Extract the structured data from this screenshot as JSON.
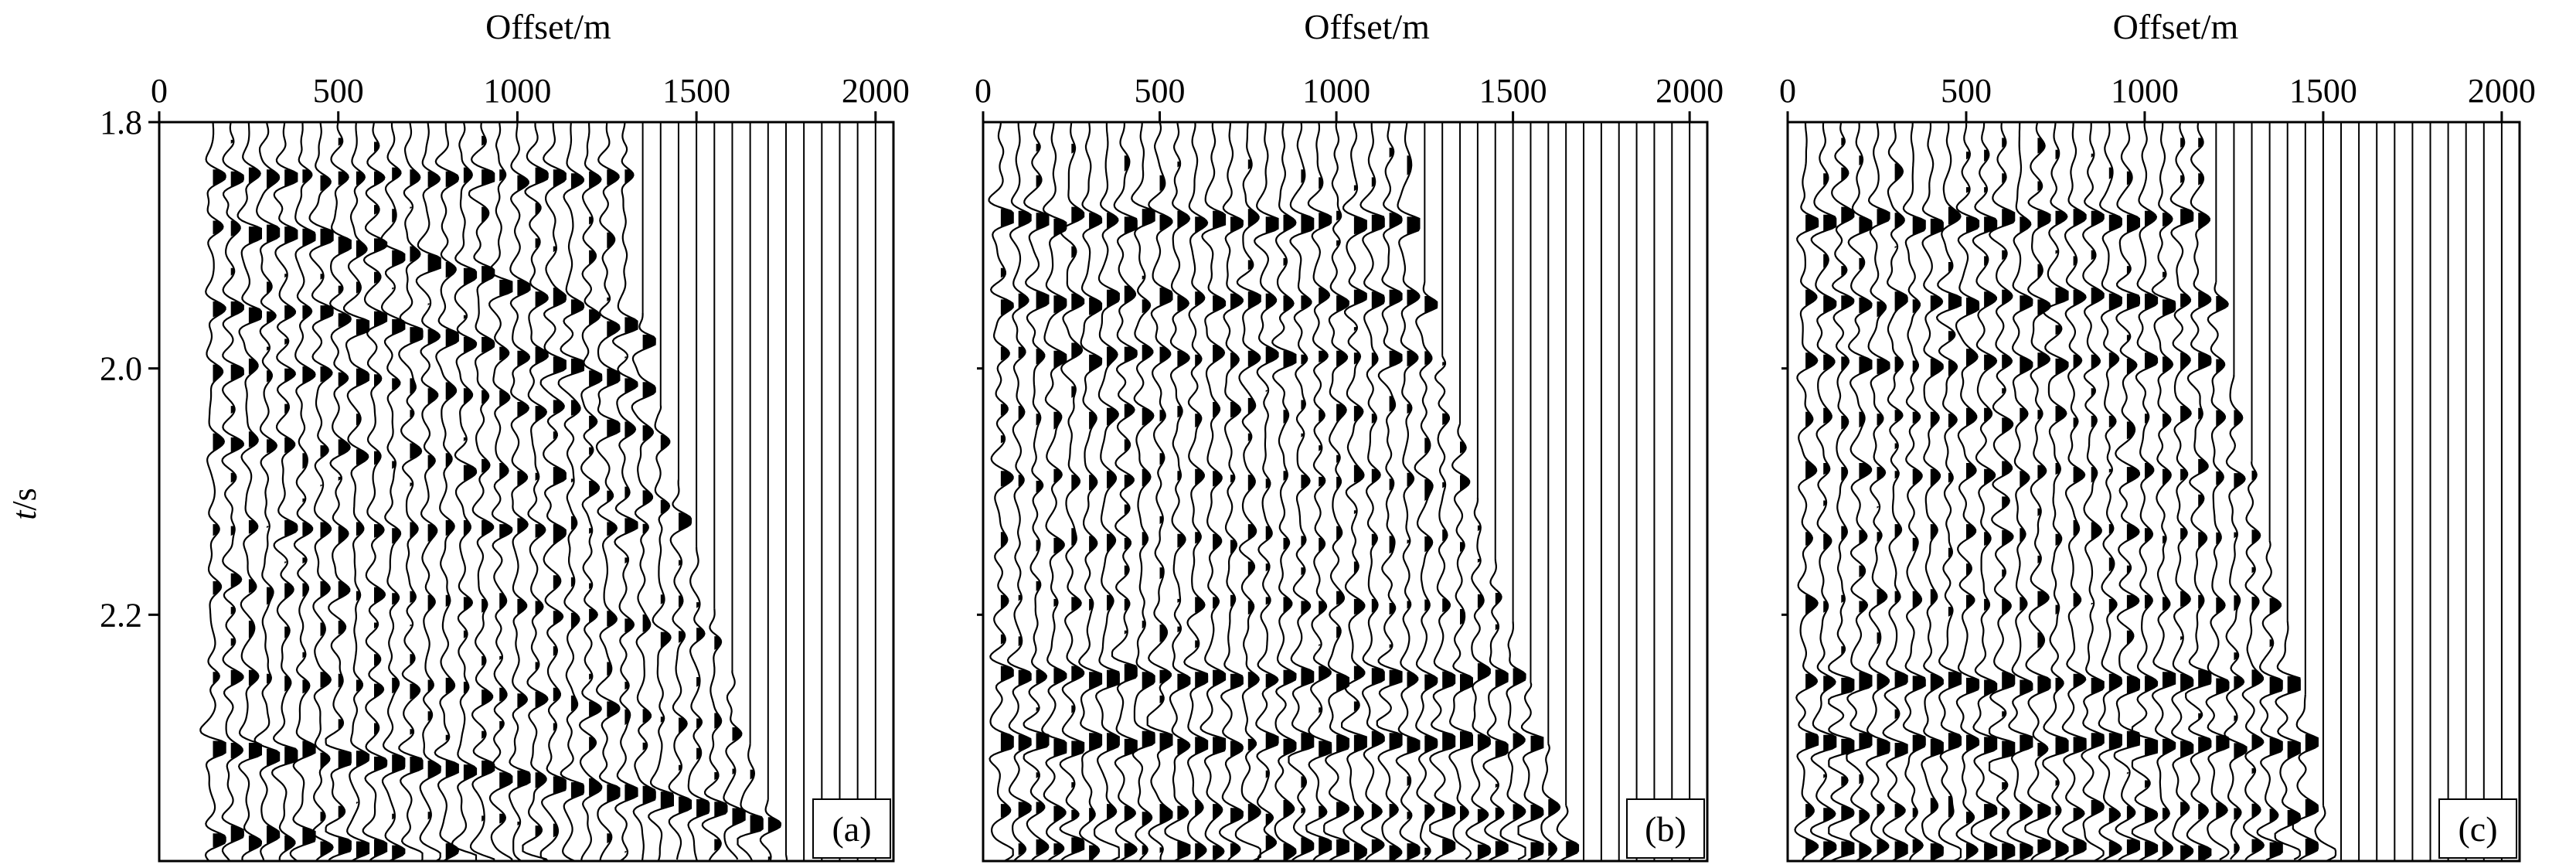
{
  "figure": {
    "ylabel_var": "t",
    "ylabel_unit": "/s"
  },
  "chart_data": [
    {
      "type": "seismic-wiggle",
      "panel_label": "(a)",
      "xlabel": "Offset/m",
      "ylabel": "t/s",
      "xticks": [
        0,
        500,
        1000,
        1500,
        2000
      ],
      "xlim": [
        0,
        2050
      ],
      "yticks": [
        1.8,
        2.0,
        2.2
      ],
      "ylim": [
        1.8,
        2.4
      ],
      "trace_spacing_m": 50,
      "first_trace_offset_m": 150,
      "last_trace_offset_m": 2000,
      "mute_offset_m": [
        [
          1.8,
          1300
        ],
        [
          1.9,
          1320
        ],
        [
          2.0,
          1380
        ],
        [
          2.1,
          1460
        ],
        [
          2.2,
          1560
        ],
        [
          2.3,
          1650
        ],
        [
          2.4,
          1760
        ]
      ],
      "events": [
        {
          "t0": 1.845,
          "v": 1000000000.0,
          "strength": 0.8
        },
        {
          "t0": 1.885,
          "v": 2300,
          "strength": 1.0
        },
        {
          "t0": 1.95,
          "v": 2600,
          "strength": 1.0
        },
        {
          "t0": 2.0,
          "v": 2900,
          "strength": 0.75
        },
        {
          "t0": 2.06,
          "v": 3000,
          "strength": 0.6
        },
        {
          "t0": 2.13,
          "v": 1000000000.0,
          "strength": 0.65
        },
        {
          "t0": 2.175,
          "v": 3400,
          "strength": 0.55
        },
        {
          "t0": 2.25,
          "v": 3600,
          "strength": 0.55
        },
        {
          "t0": 2.31,
          "v": 3200,
          "strength": 1.25
        },
        {
          "t0": 2.38,
          "v": 3000,
          "strength": 1.15
        }
      ],
      "seed": 11
    },
    {
      "type": "seismic-wiggle",
      "panel_label": "(b)",
      "xlabel": "Offset/m",
      "ylabel": "",
      "xticks": [
        0,
        500,
        1000,
        1500,
        2000
      ],
      "xlim": [
        0,
        2050
      ],
      "yticks": [],
      "ylim": [
        1.8,
        2.4
      ],
      "trace_spacing_m": 50,
      "first_trace_offset_m": 50,
      "last_trace_offset_m": 2000,
      "mute_offset_m": [
        [
          1.8,
          1200
        ],
        [
          1.9,
          1230
        ],
        [
          2.0,
          1310
        ],
        [
          2.1,
          1400
        ],
        [
          2.2,
          1500
        ],
        [
          2.3,
          1600
        ],
        [
          2.4,
          1700
        ]
      ],
      "events": [
        {
          "t0": 1.88,
          "v": 1000000000.0,
          "strength": 1.05
        },
        {
          "t0": 1.945,
          "v": 1000000000.0,
          "strength": 0.95
        },
        {
          "t0": 1.99,
          "v": 1000000000.0,
          "strength": 0.7
        },
        {
          "t0": 2.035,
          "v": 1000000000.0,
          "strength": 0.5
        },
        {
          "t0": 2.09,
          "v": 1000000000.0,
          "strength": 0.5
        },
        {
          "t0": 2.14,
          "v": 1000000000.0,
          "strength": 0.45
        },
        {
          "t0": 2.19,
          "v": 1000000000.0,
          "strength": 0.45
        },
        {
          "t0": 2.25,
          "v": 1000000000.0,
          "strength": 1.1
        },
        {
          "t0": 2.305,
          "v": 1000000000.0,
          "strength": 1.3
        },
        {
          "t0": 2.36,
          "v": 1000000000.0,
          "strength": 0.7
        },
        {
          "t0": 2.39,
          "v": 1000000000.0,
          "strength": 0.9
        }
      ],
      "seed": 23
    },
    {
      "type": "seismic-wiggle",
      "panel_label": "(c)",
      "xlabel": "Offset/m",
      "ylabel": "",
      "xticks": [
        0,
        500,
        1000,
        1500,
        2000
      ],
      "xlim": [
        0,
        2050
      ],
      "yticks": [],
      "ylim": [
        1.8,
        2.4
      ],
      "trace_spacing_m": 50,
      "first_trace_offset_m": 50,
      "last_trace_offset_m": 2000,
      "mute_offset_m": [
        [
          1.8,
          1150
        ],
        [
          1.9,
          1180
        ],
        [
          2.0,
          1250
        ],
        [
          2.1,
          1320
        ],
        [
          2.2,
          1400
        ],
        [
          2.3,
          1480
        ],
        [
          2.4,
          1520
        ]
      ],
      "events": [
        {
          "t0": 1.88,
          "v": 1000000000.0,
          "strength": 1.05
        },
        {
          "t0": 1.945,
          "v": 1000000000.0,
          "strength": 0.95
        },
        {
          "t0": 1.995,
          "v": 1000000000.0,
          "strength": 0.75
        },
        {
          "t0": 2.04,
          "v": 1000000000.0,
          "strength": 0.55
        },
        {
          "t0": 2.085,
          "v": 1000000000.0,
          "strength": 0.55
        },
        {
          "t0": 2.135,
          "v": 1000000000.0,
          "strength": 0.5
        },
        {
          "t0": 2.19,
          "v": 1000000000.0,
          "strength": 0.5
        },
        {
          "t0": 2.255,
          "v": 1000000000.0,
          "strength": 1.1
        },
        {
          "t0": 2.305,
          "v": 1000000000.0,
          "strength": 1.35
        },
        {
          "t0": 2.36,
          "v": 1000000000.0,
          "strength": 0.7
        },
        {
          "t0": 2.39,
          "v": 1000000000.0,
          "strength": 1.0
        }
      ],
      "seed": 37
    }
  ]
}
